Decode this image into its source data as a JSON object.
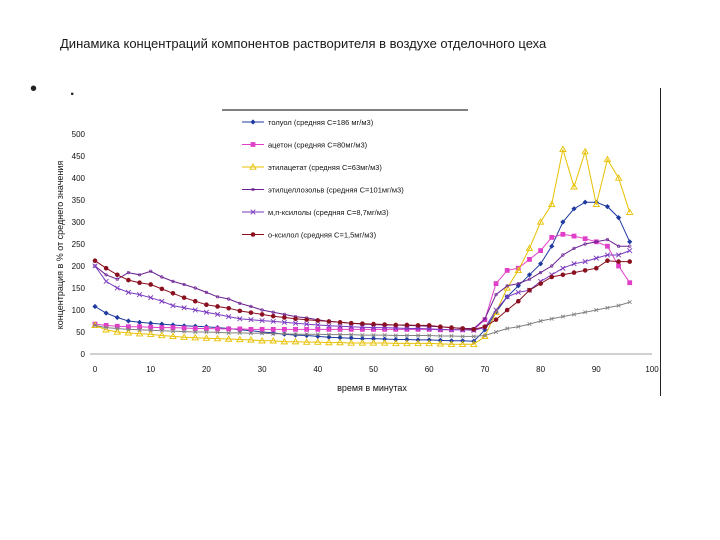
{
  "slide": {
    "title": "Динамика концентраций компонентов растворителя в воздухе отделочного цеха",
    "bullet_text": "."
  },
  "chart_data": {
    "type": "line",
    "title": "",
    "xlabel": "время в минутах",
    "ylabel": "концентрация в % от среднего значения",
    "xlim": [
      0,
      100
    ],
    "ylim": [
      0,
      500
    ],
    "x_ticks": [
      0,
      10,
      20,
      30,
      40,
      50,
      60,
      70,
      80,
      90,
      100
    ],
    "y_ticks": [
      0,
      50,
      100,
      150,
      200,
      250,
      300,
      350,
      400,
      450,
      500
    ],
    "grid": false,
    "legend_position": "top",
    "series": [
      {
        "name": "толуол (средняя С=186 мг/м3)",
        "color": "#1f3aa0",
        "marker": "diamond",
        "x": [
          0,
          2,
          4,
          6,
          8,
          10,
          12,
          14,
          16,
          18,
          20,
          22,
          24,
          26,
          28,
          30,
          32,
          34,
          36,
          38,
          40,
          42,
          44,
          46,
          48,
          50,
          52,
          54,
          56,
          58,
          60,
          62,
          64,
          66,
          68,
          70,
          72,
          74,
          76,
          78,
          80,
          82,
          84,
          86,
          88,
          90,
          92,
          94,
          96
        ],
        "values": [
          108,
          93,
          83,
          75,
          72,
          70,
          68,
          66,
          64,
          63,
          62,
          60,
          58,
          55,
          53,
          50,
          48,
          45,
          43,
          42,
          40,
          38,
          37,
          36,
          35,
          35,
          34,
          33,
          33,
          32,
          32,
          31,
          30,
          30,
          29,
          55,
          95,
          130,
          155,
          180,
          205,
          245,
          300,
          330,
          345,
          345,
          335,
          310,
          255
        ]
      },
      {
        "name": "ацетон (средняя С=80мг/м3)",
        "color": "#e040c8",
        "marker": "square",
        "x": [
          0,
          2,
          4,
          6,
          8,
          10,
          12,
          14,
          16,
          18,
          20,
          22,
          24,
          26,
          28,
          30,
          32,
          34,
          36,
          38,
          40,
          42,
          44,
          46,
          48,
          50,
          52,
          54,
          56,
          58,
          60,
          62,
          64,
          66,
          68,
          70,
          72,
          74,
          76,
          78,
          80,
          82,
          84,
          86,
          88,
          90,
          92,
          94,
          96
        ],
        "values": [
          68,
          65,
          63,
          62,
          62,
          61,
          60,
          60,
          59,
          58,
          58,
          57,
          57,
          57,
          56,
          56,
          56,
          56,
          56,
          56,
          56,
          56,
          56,
          56,
          56,
          56,
          56,
          56,
          56,
          56,
          56,
          55,
          55,
          55,
          55,
          78,
          160,
          190,
          195,
          215,
          235,
          265,
          272,
          268,
          262,
          255,
          245,
          200,
          162
        ]
      },
      {
        "name": "этилацетат (средняя С=63мг/м3)",
        "color": "#e8c000",
        "marker": "triangle",
        "x": [
          0,
          2,
          4,
          6,
          8,
          10,
          12,
          14,
          16,
          18,
          20,
          22,
          24,
          26,
          28,
          30,
          32,
          34,
          36,
          38,
          40,
          42,
          44,
          46,
          48,
          50,
          52,
          54,
          56,
          58,
          60,
          62,
          64,
          66,
          68,
          70,
          72,
          74,
          76,
          78,
          80,
          82,
          84,
          86,
          88,
          90,
          92,
          94,
          96
        ],
        "values": [
          65,
          55,
          50,
          48,
          46,
          45,
          42,
          40,
          38,
          37,
          36,
          35,
          34,
          33,
          32,
          30,
          30,
          28,
          28,
          27,
          27,
          26,
          26,
          25,
          25,
          25,
          25,
          24,
          24,
          24,
          24,
          23,
          22,
          22,
          22,
          40,
          95,
          150,
          190,
          240,
          300,
          340,
          465,
          380,
          460,
          340,
          442,
          400,
          322
        ]
      },
      {
        "name": "этилцеллозольв (средняя С=101мг/м3)",
        "color": "#6a2090",
        "marker": "line",
        "x": [
          0,
          2,
          4,
          6,
          8,
          10,
          12,
          14,
          16,
          18,
          20,
          22,
          24,
          26,
          28,
          30,
          32,
          34,
          36,
          38,
          40,
          42,
          44,
          46,
          48,
          50,
          52,
          54,
          56,
          58,
          60,
          62,
          64,
          66,
          68,
          70,
          72,
          74,
          76,
          78,
          80,
          82,
          84,
          86,
          88,
          90,
          92,
          94,
          96
        ],
        "values": [
          200,
          180,
          170,
          185,
          180,
          188,
          175,
          165,
          158,
          150,
          140,
          130,
          125,
          115,
          108,
          100,
          95,
          90,
          85,
          82,
          78,
          74,
          72,
          70,
          68,
          67,
          66,
          66,
          65,
          64,
          63,
          62,
          60,
          58,
          58,
          80,
          135,
          155,
          160,
          170,
          185,
          200,
          225,
          240,
          250,
          255,
          260,
          245,
          245
        ]
      },
      {
        "name": "м,п-ксилолы (средняя С=8,7мг/м3)",
        "color": "#7a3ac0",
        "marker": "cross",
        "x": [
          0,
          2,
          4,
          6,
          8,
          10,
          12,
          14,
          16,
          18,
          20,
          22,
          24,
          26,
          28,
          30,
          32,
          34,
          36,
          38,
          40,
          42,
          44,
          46,
          48,
          50,
          52,
          54,
          56,
          58,
          60,
          62,
          64,
          66,
          68,
          70,
          72,
          74,
          76,
          78,
          80,
          82,
          84,
          86,
          88,
          90,
          92,
          94,
          96
        ],
        "values": [
          200,
          165,
          150,
          140,
          135,
          128,
          120,
          110,
          105,
          100,
          95,
          90,
          85,
          80,
          78,
          76,
          74,
          72,
          70,
          68,
          66,
          64,
          63,
          62,
          61,
          60,
          60,
          59,
          58,
          58,
          57,
          56,
          55,
          55,
          54,
          60,
          100,
          130,
          140,
          145,
          165,
          180,
          195,
          205,
          210,
          218,
          225,
          225,
          235
        ]
      },
      {
        "name": "о-ксилол (средняя С=1,5мг/м3)",
        "color": "#8a1020",
        "marker": "circle",
        "x": [
          0,
          2,
          4,
          6,
          8,
          10,
          12,
          14,
          16,
          18,
          20,
          22,
          24,
          26,
          28,
          30,
          32,
          34,
          36,
          38,
          40,
          42,
          44,
          46,
          48,
          50,
          52,
          54,
          56,
          58,
          60,
          62,
          64,
          66,
          68,
          70,
          72,
          74,
          76,
          78,
          80,
          82,
          84,
          86,
          88,
          90,
          92,
          94,
          96
        ],
        "values": [
          212,
          195,
          180,
          168,
          162,
          158,
          148,
          138,
          128,
          120,
          112,
          108,
          104,
          98,
          94,
          90,
          86,
          83,
          80,
          78,
          76,
          74,
          72,
          70,
          69,
          68,
          67,
          66,
          66,
          65,
          65,
          62,
          60,
          58,
          56,
          62,
          78,
          100,
          120,
          145,
          160,
          175,
          180,
          185,
          190,
          195,
          212,
          210,
          210
        ]
      },
      {
        "name": "",
        "color": "#808080",
        "marker": "cross-small",
        "x": [
          0,
          2,
          4,
          6,
          8,
          10,
          12,
          14,
          16,
          18,
          20,
          22,
          24,
          26,
          28,
          30,
          32,
          34,
          36,
          38,
          40,
          42,
          44,
          46,
          48,
          50,
          52,
          54,
          56,
          58,
          60,
          62,
          64,
          66,
          68,
          70,
          72,
          74,
          76,
          78,
          80,
          82,
          84,
          86,
          88,
          90,
          92,
          94,
          96
        ],
        "values": [
          65,
          60,
          58,
          56,
          55,
          54,
          53,
          52,
          51,
          50,
          50,
          49,
          48,
          48,
          47,
          47,
          46,
          46,
          45,
          45,
          45,
          44,
          44,
          44,
          43,
          43,
          43,
          42,
          42,
          42,
          42,
          41,
          41,
          40,
          40,
          42,
          50,
          58,
          62,
          68,
          75,
          80,
          85,
          90,
          95,
          100,
          105,
          110,
          118
        ]
      }
    ]
  }
}
